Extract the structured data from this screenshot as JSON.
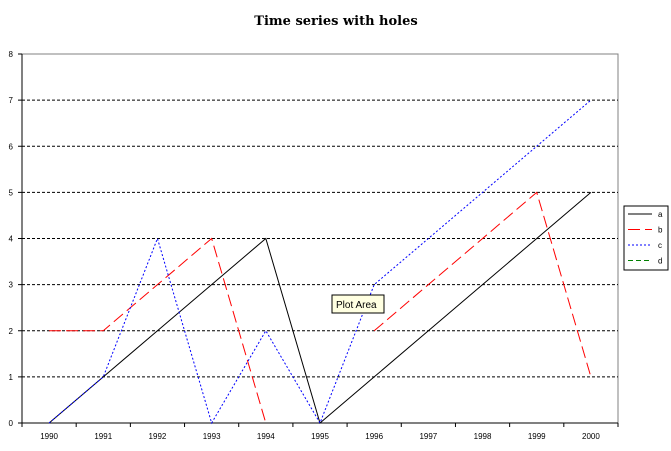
{
  "chart_data": {
    "type": "line",
    "title": "Time series with holes",
    "xlabel": "",
    "ylabel": "",
    "categories": [
      "1990",
      "1991",
      "1992",
      "1993",
      "1994",
      "1995",
      "1996",
      "1997",
      "1998",
      "1999",
      "2000"
    ],
    "ylim": [
      0,
      8
    ],
    "yticks": [
      "0",
      "1",
      "2",
      "3",
      "4",
      "5",
      "6",
      "7",
      "8"
    ],
    "grid": "horizontal dotted",
    "legend_position": "right",
    "series": [
      {
        "name": "a",
        "color": "#000000",
        "dash": "solid",
        "values": [
          0,
          1,
          2,
          3,
          4,
          0,
          1,
          2,
          3,
          4,
          5
        ]
      },
      {
        "name": "b",
        "color": "#ff0000",
        "dash": "long-dash",
        "values": [
          2,
          2,
          3,
          4,
          0,
          null,
          2,
          3,
          4,
          5,
          1
        ]
      },
      {
        "name": "c",
        "color": "#0000ff",
        "dash": "dotted",
        "values": [
          0,
          1,
          4,
          0,
          2,
          0,
          3,
          4,
          5,
          6,
          7
        ]
      },
      {
        "name": "d",
        "color": "#008000",
        "dash": "dash",
        "values": [
          null,
          null,
          null,
          null,
          null,
          null,
          null,
          null,
          null,
          null,
          null
        ]
      }
    ]
  },
  "tooltip": {
    "text": "Plot Area"
  }
}
